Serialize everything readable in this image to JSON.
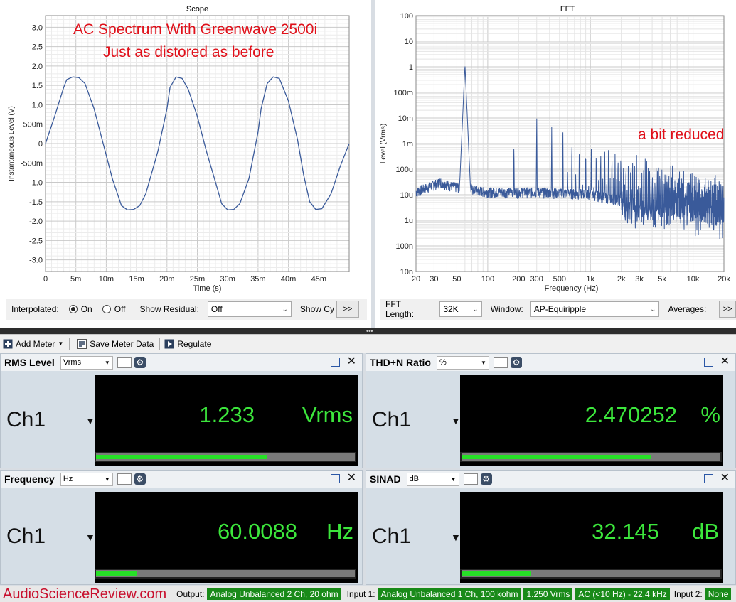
{
  "scope": {
    "title": "Scope",
    "annotation_line1": "AC Spectrum With Greenwave 2500i",
    "annotation_line2": "Just as distored as before",
    "controls": {
      "interpolated_label": "Interpolated:",
      "on_label": "On",
      "off_label": "Off",
      "show_residual_label": "Show Residual:",
      "residual_value": "Off",
      "show_cy_label": "Show Cy",
      "more_label": ">>"
    }
  },
  "fft": {
    "title": "FFT",
    "annotation": "a bit reduced",
    "controls": {
      "fft_length_label": "FFT Length:",
      "fft_length_value": "32K",
      "window_label": "Window:",
      "window_value": "AP-Equiripple",
      "averages_label": "Averages:",
      "more_label": ">>"
    }
  },
  "chart_data": [
    {
      "type": "line",
      "title": "Scope",
      "xlabel": "Time (s)",
      "ylabel": "Instantaneous Level (V)",
      "xlim": [
        0,
        0.05
      ],
      "ylim": [
        -3.3,
        3.3
      ],
      "x_tick_labels": [
        "0",
        "5m",
        "10m",
        "15m",
        "20m",
        "25m",
        "30m",
        "35m",
        "40m",
        "45m"
      ],
      "y_tick_labels": [
        "3.0",
        "2.5",
        "2.0",
        "1.5",
        "1.0",
        "500m",
        "0",
        "-500m",
        "-1.0",
        "-1.5",
        "-2.0",
        "-2.5",
        "-3.0"
      ],
      "grid": true,
      "series": [
        {
          "color": "#3a5a9a",
          "x": [
            0,
            0.0015,
            0.003,
            0.0035,
            0.0045,
            0.0055,
            0.0065,
            0.008,
            0.0095,
            0.011,
            0.0125,
            0.0135,
            0.0145,
            0.0155,
            0.0165,
            0.0185,
            0.02,
            0.0205,
            0.0215,
            0.0225,
            0.0235,
            0.025,
            0.0265,
            0.028,
            0.029,
            0.03,
            0.031,
            0.032,
            0.0335,
            0.035,
            0.0355,
            0.0365,
            0.0375,
            0.0385,
            0.04,
            0.0415,
            0.0425,
            0.0435,
            0.0445,
            0.0455,
            0.047,
            0.0485,
            0.05
          ],
          "y": [
            0,
            0.7,
            1.45,
            1.65,
            1.72,
            1.7,
            1.55,
            0.9,
            0.0,
            -0.9,
            -1.6,
            -1.71,
            -1.7,
            -1.6,
            -1.3,
            -0.2,
            0.9,
            1.45,
            1.72,
            1.68,
            1.4,
            0.7,
            -0.2,
            -1.0,
            -1.55,
            -1.71,
            -1.7,
            -1.55,
            -0.9,
            0.3,
            0.9,
            1.55,
            1.72,
            1.68,
            1.1,
            0.1,
            -0.8,
            -1.5,
            -1.7,
            -1.68,
            -1.3,
            -0.6,
            0.0
          ]
        }
      ]
    },
    {
      "type": "line",
      "title": "FFT",
      "xlabel": "Frequency (Hz)",
      "ylabel": "Level (Vrms)",
      "x_scale": "log",
      "y_scale": "log",
      "xlim": [
        20,
        20000
      ],
      "ylim": [
        1e-08,
        100
      ],
      "x_tick_labels": [
        "20",
        "30",
        "50",
        "100",
        "200",
        "300",
        "500",
        "1k",
        "2k",
        "3k",
        "5k",
        "10k",
        "20k"
      ],
      "y_tick_labels": [
        "100",
        "10",
        "1",
        "100m",
        "10m",
        "1m",
        "100u",
        "10u",
        "1u",
        "100n",
        "10n"
      ],
      "grid": true,
      "series": [
        {
          "color": "#3a5a9a",
          "fundamental_hz": 60,
          "fundamental_vrms": 1.2,
          "harmonics": [
            {
              "f": 120,
              "v": 8e-05
            },
            {
              "f": 180,
              "v": 0.0015
            },
            {
              "f": 240,
              "v": 0.00012
            },
            {
              "f": 300,
              "v": 0.015
            },
            {
              "f": 360,
              "v": 0.0002
            },
            {
              "f": 420,
              "v": 0.005
            },
            {
              "f": 480,
              "v": 0.00015
            },
            {
              "f": 540,
              "v": 0.003
            },
            {
              "f": 660,
              "v": 0.002
            },
            {
              "f": 780,
              "v": 0.0015
            },
            {
              "f": 900,
              "v": 0.001
            },
            {
              "f": 1020,
              "v": 0.0009
            },
            {
              "f": 1260,
              "v": 0.0008
            },
            {
              "f": 1500,
              "v": 0.0006
            },
            {
              "f": 2000,
              "v": 0.0005
            },
            {
              "f": 3000,
              "v": 0.0003
            },
            {
              "f": 5000,
              "v": 0.0002
            },
            {
              "f": 10000,
              "v": 0.0001
            },
            {
              "f": 20000,
              "v": 4e-05
            }
          ],
          "noise_floor": [
            {
              "f": 20,
              "v": 1.2e-05
            },
            {
              "f": 35,
              "v": 3e-05
            },
            {
              "f": 45,
              "v": 2e-05
            },
            {
              "f": 100,
              "v": 1.2e-05
            },
            {
              "f": 300,
              "v": 1.2e-05
            },
            {
              "f": 1000,
              "v": 1e-05
            },
            {
              "f": 3000,
              "v": 4e-06
            },
            {
              "f": 10000,
              "v": 1.5e-06
            },
            {
              "f": 20000,
              "v": 5e-07
            }
          ]
        }
      ]
    }
  ],
  "toolbar": {
    "add_meter_label": "Add Meter",
    "save_meter_label": "Save Meter Data",
    "regulate_label": "Regulate"
  },
  "meters": {
    "rms": {
      "name": "RMS Level",
      "unit_select": "Vrms",
      "channel": "Ch1",
      "value": "1.233",
      "unit": "Vrms",
      "level": 0.66
    },
    "thd": {
      "name": "THD+N Ratio",
      "unit_select": "%",
      "channel": "Ch1",
      "value": "2.470252",
      "unit": "%",
      "level": 0.73
    },
    "freq": {
      "name": "Frequency",
      "unit_select": "Hz",
      "channel": "Ch1",
      "value": "60.0088",
      "unit": "Hz",
      "level": 0.16
    },
    "sinad": {
      "name": "SINAD",
      "unit_select": "dB",
      "channel": "Ch1",
      "value": "32.145",
      "unit": "dB",
      "level": 0.27
    }
  },
  "status": {
    "brand": "AudioScienceReview.com",
    "output_label": "Output:",
    "output_value": "Analog Unbalanced 2 Ch, 20 ohm",
    "input1_label": "Input 1:",
    "input1_value": "Analog Unbalanced 1 Ch, 100 kohm",
    "input1_level": "1.250 Vrms",
    "input1_bw": "AC (<10 Hz) - 22.4 kHz",
    "input2_label": "Input 2:",
    "input2_value": "None"
  },
  "colors": {
    "trace": "#3a5a9a",
    "annotation": "#e0101a",
    "meter_text": "#3ce63c",
    "meter_bar": "#27e027",
    "brand": "#c8102e"
  }
}
